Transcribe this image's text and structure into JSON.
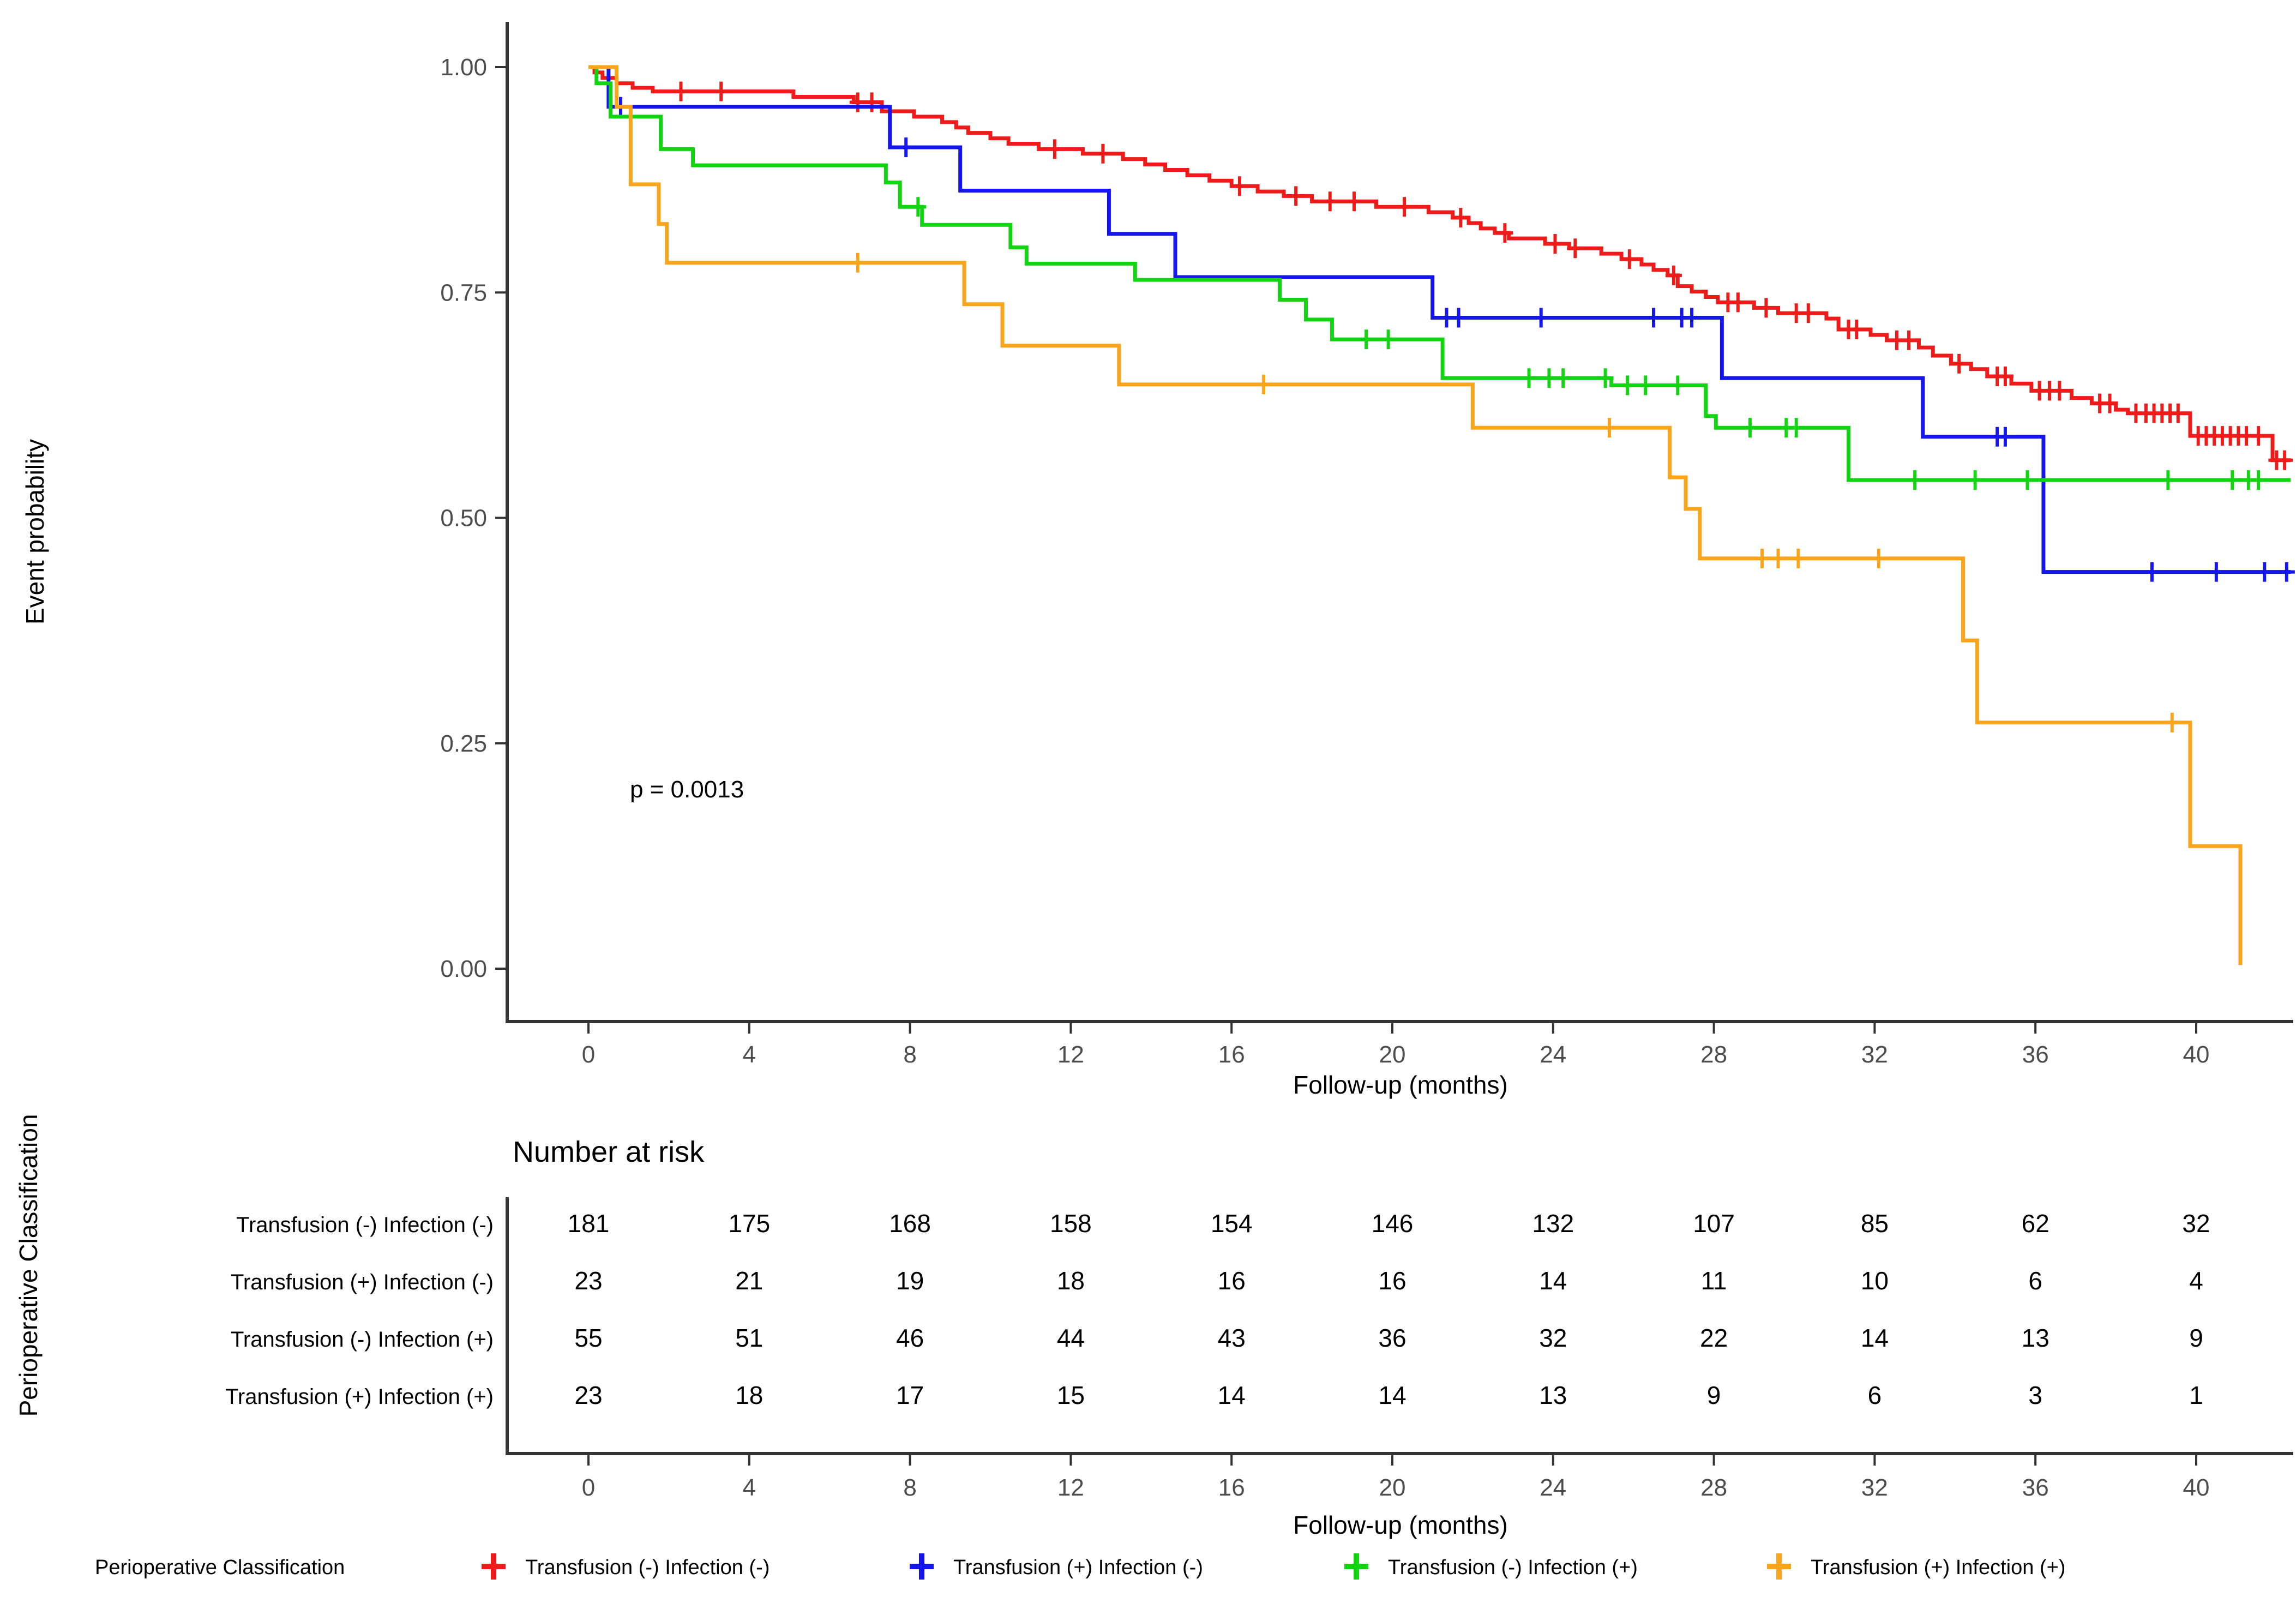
{
  "chart_data": {
    "type": "line",
    "subtype": "kaplan-meier-step",
    "title": "",
    "p_value": "p = 0.0013",
    "x_axis": {
      "label": "Follow-up (months)",
      "ticks": [
        0,
        4,
        8,
        12,
        16,
        20,
        24,
        28,
        32,
        36,
        40
      ],
      "range": [
        0,
        42.5
      ]
    },
    "y_axis": {
      "label": "Event probability",
      "ticks": [
        "1.00",
        "0.75",
        "0.50",
        "0.25",
        "0.00"
      ],
      "tick_values": [
        1.0,
        0.75,
        0.5,
        0.25,
        0.0
      ],
      "range": [
        0,
        1
      ]
    },
    "grid": "off",
    "legend_position": "bottom",
    "series": [
      {
        "name": "Transfusion (-) Infection (-)",
        "color": "#ee1b1b",
        "end_month": 42.35,
        "steps": [
          [
            0,
            1
          ],
          [
            0.15,
            0.994
          ],
          [
            0.35,
            0.988
          ],
          [
            0.7,
            0.982
          ],
          [
            1.1,
            0.977
          ],
          [
            1.6,
            0.973
          ],
          [
            5.1,
            0.967
          ],
          [
            6.6,
            0.961
          ],
          [
            7.3,
            0.951
          ],
          [
            8.1,
            0.945
          ],
          [
            8.8,
            0.939
          ],
          [
            9.15,
            0.933
          ],
          [
            9.45,
            0.927
          ],
          [
            10,
            0.921
          ],
          [
            10.45,
            0.915
          ],
          [
            11.2,
            0.909
          ],
          [
            12.3,
            0.904
          ],
          [
            13.3,
            0.898
          ],
          [
            13.85,
            0.892
          ],
          [
            14.35,
            0.886
          ],
          [
            14.9,
            0.88
          ],
          [
            15.45,
            0.874
          ],
          [
            16,
            0.868
          ],
          [
            16.65,
            0.862
          ],
          [
            17.3,
            0.857
          ],
          [
            18,
            0.851
          ],
          [
            19.6,
            0.845
          ],
          [
            20.9,
            0.839
          ],
          [
            21.5,
            0.833
          ],
          [
            21.9,
            0.827
          ],
          [
            22.2,
            0.821
          ],
          [
            22.55,
            0.816
          ],
          [
            22.9,
            0.81
          ],
          [
            23.8,
            0.804
          ],
          [
            24.4,
            0.799
          ],
          [
            25.2,
            0.793
          ],
          [
            25.7,
            0.787
          ],
          [
            26.2,
            0.781
          ],
          [
            26.5,
            0.775
          ],
          [
            26.85,
            0.769
          ],
          [
            27.1,
            0.757
          ],
          [
            27.45,
            0.751
          ],
          [
            27.8,
            0.745
          ],
          [
            28.1,
            0.739
          ],
          [
            29,
            0.733
          ],
          [
            29.6,
            0.727
          ],
          [
            30.8,
            0.721
          ],
          [
            31.1,
            0.709
          ],
          [
            31.9,
            0.703
          ],
          [
            32.3,
            0.697
          ],
          [
            33.1,
            0.689
          ],
          [
            33.45,
            0.68
          ],
          [
            33.9,
            0.671
          ],
          [
            34.4,
            0.665
          ],
          [
            34.8,
            0.657
          ],
          [
            35.4,
            0.649
          ],
          [
            35.9,
            0.641
          ],
          [
            36.9,
            0.633
          ],
          [
            37.4,
            0.627
          ],
          [
            38,
            0.62
          ],
          [
            38.3,
            0.616
          ],
          [
            39.85,
            0.591
          ],
          [
            41.9,
            0.564
          ]
        ],
        "censor_months": [
          2.3,
          3.3,
          6.7,
          7.05,
          11.6,
          12.8,
          16.2,
          17.6,
          18.45,
          19.05,
          20.3,
          21.7,
          22.8,
          24.05,
          24.55,
          25.9,
          27,
          28.35,
          28.6,
          29.3,
          30.05,
          30.35,
          31.35,
          31.55,
          32.55,
          32.85,
          34.1,
          35.05,
          35.25,
          36.1,
          36.35,
          36.6,
          37.6,
          37.85,
          38.5,
          38.75,
          38.95,
          39.15,
          39.35,
          39.55,
          40.05,
          40.25,
          40.45,
          40.65,
          40.85,
          41.05,
          41.25,
          41.55,
          42,
          42.2
        ]
      },
      {
        "name": "Transfusion (+) Infection (-)",
        "color": "#1515ee",
        "end_month": 42.35,
        "steps": [
          [
            0,
            1
          ],
          [
            0.5,
            0.956
          ],
          [
            7.5,
            0.911
          ],
          [
            9.25,
            0.863
          ],
          [
            12.95,
            0.815
          ],
          [
            14.6,
            0.767
          ],
          [
            21,
            0.722
          ],
          [
            28.2,
            0.655
          ],
          [
            33.2,
            0.59
          ],
          [
            36.2,
            0.44
          ]
        ],
        "censor_months": [
          0.8,
          7.9,
          21.35,
          21.65,
          23.7,
          26.5,
          27.2,
          27.45,
          35.05,
          35.25,
          38.9,
          40.5,
          41.7,
          42.25
        ]
      },
      {
        "name": "Transfusion (-) Infection (+)",
        "color": "#12d412",
        "end_month": 42.35,
        "steps": [
          [
            0,
            1
          ],
          [
            0.2,
            0.982
          ],
          [
            0.55,
            0.945
          ],
          [
            1.8,
            0.909
          ],
          [
            2.6,
            0.891
          ],
          [
            7.4,
            0.872
          ],
          [
            7.75,
            0.845
          ],
          [
            8.3,
            0.825
          ],
          [
            10.5,
            0.8
          ],
          [
            10.9,
            0.782
          ],
          [
            13.6,
            0.764
          ],
          [
            17.2,
            0.742
          ],
          [
            17.85,
            0.72
          ],
          [
            18.5,
            0.698
          ],
          [
            21.25,
            0.655
          ],
          [
            25.45,
            0.647
          ],
          [
            27.8,
            0.613
          ],
          [
            28.05,
            0.6
          ],
          [
            31.35,
            0.542
          ]
        ],
        "censor_months": [
          8.2,
          19.35,
          19.9,
          23.4,
          23.9,
          24.25,
          25.3,
          25.85,
          26.3,
          27.1,
          28.9,
          29.8,
          30.05,
          33,
          34.5,
          35.8,
          39.3,
          40.9,
          41.3,
          41.55
        ]
      },
      {
        "name": "Transfusion (+) Infection (+)",
        "color": "#f8a51b",
        "end_month": 41.1,
        "steps": [
          [
            0,
            1
          ],
          [
            0.7,
            0.956
          ],
          [
            1.05,
            0.87
          ],
          [
            1.75,
            0.826
          ],
          [
            1.95,
            0.783
          ],
          [
            9.35,
            0.737
          ],
          [
            10.3,
            0.691
          ],
          [
            13.2,
            0.648
          ],
          [
            22,
            0.6
          ],
          [
            26.9,
            0.545
          ],
          [
            27.3,
            0.51
          ],
          [
            27.65,
            0.455
          ],
          [
            34.2,
            0.364
          ],
          [
            34.55,
            0.273
          ],
          [
            39.85,
            0.136
          ],
          [
            41.1,
            0.004
          ]
        ],
        "censor_months": [
          6.7,
          16.8,
          25.4,
          29.2,
          29.6,
          30.1,
          32.1,
          39.4
        ]
      }
    ],
    "risk_table": {
      "title": "Number at risk",
      "group_axis_label": "Perioperative Classification",
      "x_label": "Follow-up (months)",
      "columns": [
        0,
        4,
        8,
        12,
        16,
        20,
        24,
        28,
        32,
        36,
        40
      ],
      "rows": [
        {
          "label": "Transfusion (-) Infection (-)",
          "color": "#ee1b1b",
          "values": [
            181,
            175,
            168,
            158,
            154,
            146,
            132,
            107,
            85,
            62,
            32
          ]
        },
        {
          "label": "Transfusion (+) Infection (-)",
          "color": "#1515ee",
          "values": [
            23,
            21,
            19,
            18,
            16,
            16,
            14,
            11,
            10,
            6,
            4
          ]
        },
        {
          "label": "Transfusion (-) Infection (+)",
          "color": "#12d412",
          "values": [
            55,
            51,
            46,
            44,
            43,
            36,
            32,
            22,
            14,
            13,
            9
          ]
        },
        {
          "label": "Transfusion (+) Infection (+)",
          "color": "#f8a51b",
          "values": [
            23,
            18,
            17,
            15,
            14,
            14,
            13,
            9,
            6,
            3,
            1
          ]
        }
      ]
    },
    "legend": {
      "title": "Perioperative Classification",
      "entries": [
        {
          "label": "Transfusion (-) Infection (-)",
          "color": "#ee1b1b"
        },
        {
          "label": "Transfusion (+) Infection (-)",
          "color": "#1515ee"
        },
        {
          "label": "Transfusion (-) Infection (+)",
          "color": "#12d412"
        },
        {
          "label": "Transfusion (+) Infection (+)",
          "color": "#f8a51b"
        }
      ]
    }
  }
}
